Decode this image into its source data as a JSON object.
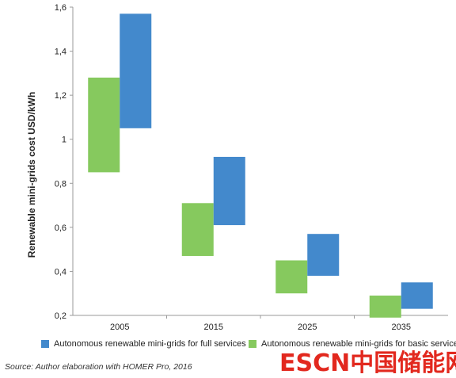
{
  "chart_data": {
    "type": "bar",
    "variant": "floating-range",
    "ylabel": "Renewable mini-grids cost USD/kWh",
    "xlabel": "",
    "categories": [
      "2005",
      "2015",
      "2025",
      "2035"
    ],
    "ylim": [
      0.2,
      1.6
    ],
    "yticks": [
      "0,2",
      "0,4",
      "0,6",
      "0,8",
      "1",
      "1,2",
      "1,4",
      "1,6"
    ],
    "ytick_values": [
      0.2,
      0.4,
      0.6,
      0.8,
      1.0,
      1.2,
      1.4,
      1.6
    ],
    "series": [
      {
        "name": "Autonomous renewable mini-grids for basic services",
        "color": "#86c95e",
        "ranges": [
          [
            0.85,
            1.28
          ],
          [
            0.47,
            0.71
          ],
          [
            0.3,
            0.45
          ],
          [
            0.19,
            0.29
          ]
        ]
      },
      {
        "name": "Autonomous renewable mini-grids for full services",
        "color": "#4389cc",
        "ranges": [
          [
            1.05,
            1.57
          ],
          [
            0.61,
            0.92
          ],
          [
            0.38,
            0.57
          ],
          [
            0.23,
            0.35
          ]
        ]
      }
    ],
    "legend_position": "bottom",
    "grid": false
  },
  "source": "Source: Author elaboration with HOMER Pro, 2016",
  "watermark": "ESCN中国储能网"
}
